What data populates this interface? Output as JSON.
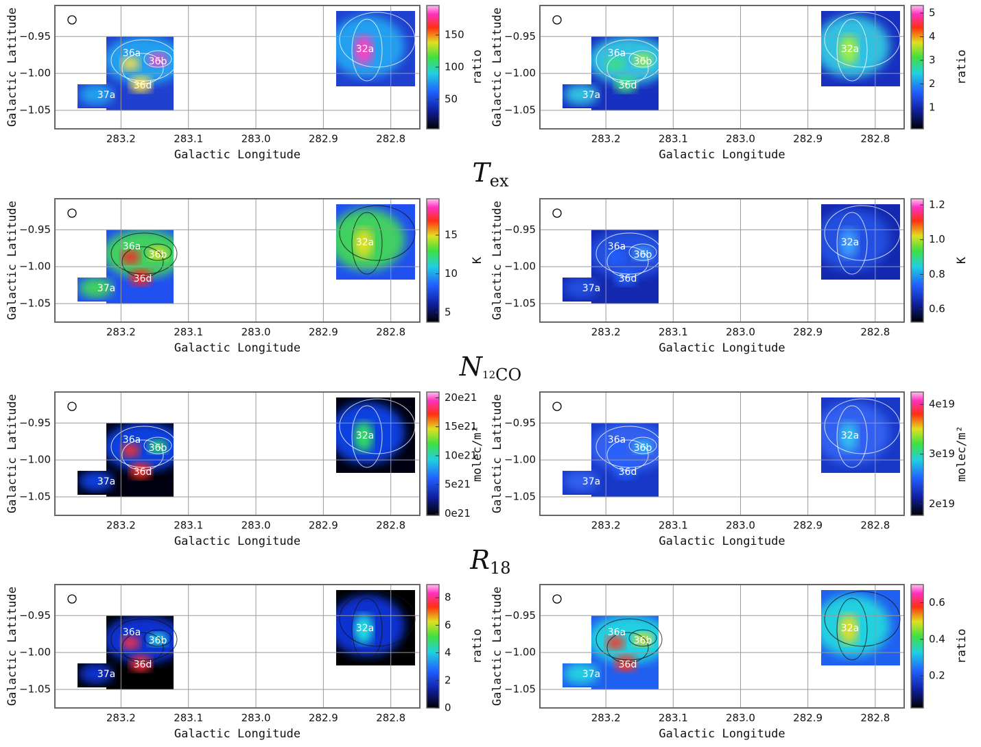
{
  "figure": {
    "x_label": "Galactic Longitude",
    "y_label": "Galactic Latitude",
    "xlim": [
      283.298,
      282.757
    ],
    "xticks": [
      283.2,
      283.1,
      {
        "value": 283.0,
        "label": "283.0"
      },
      282.9,
      282.8
    ],
    "ylim": [
      -1.075,
      -0.908
    ],
    "yticks": [
      {
        "value": -0.95,
        "label": "−0.95"
      },
      {
        "value": -1.0,
        "label": "−1.00"
      },
      {
        "value": -1.05,
        "label": "−1.05"
      }
    ],
    "region_labels": [
      "36a",
      "36b",
      "36d",
      "37a",
      "32a"
    ],
    "row_titles": [
      {
        "main": "T",
        "sub": [
          "ex"
        ]
      },
      {
        "main": "N",
        "sub": [
          "12",
          "CO"
        ]
      },
      {
        "main": "R",
        "sub": [
          "18"
        ]
      }
    ],
    "panels": [
      {
        "colorbar_label": "ratio",
        "clim": [
          4,
          196
        ],
        "cticks": [
          50,
          100,
          150
        ]
      },
      {
        "colorbar_label": "ratio",
        "clim": [
          0.1,
          5.32
        ],
        "cticks": [
          1,
          2,
          3,
          4,
          5
        ]
      },
      {
        "colorbar_label": "K",
        "clim": [
          3.76,
          19.7
        ],
        "cticks": [
          5,
          10,
          15
        ]
      },
      {
        "colorbar_label": "K",
        "clim": [
          0.525,
          1.236
        ],
        "cticks": [
          0.6,
          0.8,
          {
            "value": 1.0,
            "label": "1.0"
          },
          1.2
        ]
      },
      {
        "colorbar_label": "molec/m²",
        "clim": [
          -3e+20,
          2.1e+22
        ],
        "cticks": [
          {
            "value": 0,
            "label": "0e21"
          },
          {
            "value": 5e+21,
            "label": "5e21"
          },
          {
            "value": 1e+22,
            "label": "10e21"
          },
          {
            "value": 1.5e+22,
            "label": "15e21"
          },
          {
            "value": 2e+22,
            "label": "20e21"
          }
        ]
      },
      {
        "colorbar_label": "molec/m²",
        "clim": [
          1.77e+19,
          4.25e+19
        ],
        "cticks": [
          {
            "value": 2e+19,
            "label": "2e19"
          },
          {
            "value": 3e+19,
            "label": "3e19"
          },
          {
            "value": 4e+19,
            "label": "4e19"
          }
        ]
      },
      {
        "colorbar_label": "ratio",
        "clim": [
          0,
          8.95
        ],
        "cticks": [
          0,
          2,
          4,
          6,
          8
        ]
      },
      {
        "colorbar_label": "ratio",
        "clim": [
          0.024,
          0.7
        ],
        "cticks": [
          0.2,
          0.4,
          0.6
        ]
      }
    ]
  }
}
